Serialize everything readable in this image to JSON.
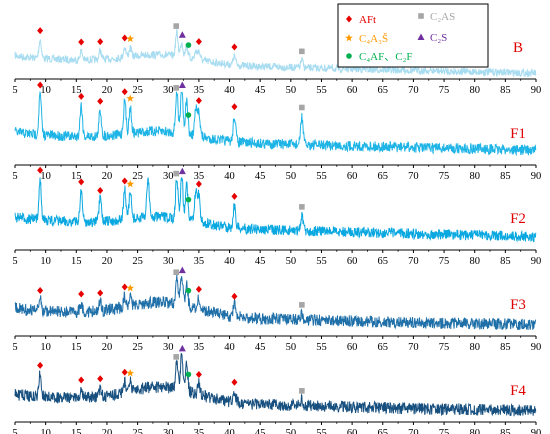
{
  "chart_data": {
    "type": "line",
    "xlim": [
      5,
      90
    ],
    "x_ticks": [
      5,
      10,
      15,
      20,
      25,
      30,
      35,
      40,
      45,
      50,
      55,
      60,
      65,
      70,
      75,
      80,
      85,
      90
    ],
    "grid": false,
    "legend_position": "top-right",
    "legend": [
      {
        "name": "AFt",
        "marker": "diamond",
        "color": "#e60000"
      },
      {
        "name": "C₂AS",
        "marker": "square",
        "color": "#a6a6a6"
      },
      {
        "name": "C₄A₃Š",
        "marker": "star",
        "color": "#ff9900"
      },
      {
        "name": "C₂S",
        "marker": "triangle",
        "color": "#7030a0"
      },
      {
        "name": "C₄AF、C₂F",
        "marker": "circle",
        "color": "#00b050"
      }
    ],
    "marker_colors": {
      "AFt": "#e60000",
      "C2AS": "#a6a6a6",
      "C4A3S": "#ff9900",
      "C2S": "#7030a0",
      "C4AF": "#00b050"
    },
    "series": [
      {
        "name": "B",
        "color": "#a8dcf0",
        "baseline_left": 0.68,
        "baseline_right": 0.92,
        "hump_height": 0.12,
        "noise": 0.05,
        "peaks": [
          [
            9.1,
            0.25
          ],
          [
            15.8,
            0.12
          ],
          [
            18.9,
            0.12
          ],
          [
            22.9,
            0.14
          ],
          [
            23.8,
            0.12
          ],
          [
            31.4,
            0.32
          ],
          [
            32.2,
            0.2
          ],
          [
            33.0,
            0.16
          ],
          [
            34.5,
            0.1
          ],
          [
            35.0,
            0.12
          ],
          [
            40.8,
            0.12
          ],
          [
            51.8,
            0.1
          ]
        ],
        "markers": [
          {
            "phase": "AFt",
            "x": 9.1
          },
          {
            "phase": "AFt",
            "x": 15.8
          },
          {
            "phase": "AFt",
            "x": 18.9
          },
          {
            "phase": "AFt",
            "x": 22.9
          },
          {
            "phase": "C4A3S",
            "x": 23.8
          },
          {
            "phase": "C2AS",
            "x": 31.3
          },
          {
            "phase": "C2S",
            "x": 32.3
          },
          {
            "phase": "C4AF",
            "x": 33.3
          },
          {
            "phase": "AFt",
            "x": 35.0
          },
          {
            "phase": "AFt",
            "x": 40.8
          },
          {
            "phase": "C2AS",
            "x": 51.8
          }
        ]
      },
      {
        "name": "F1",
        "color": "#1eb4e6",
        "baseline_left": 0.55,
        "baseline_right": 0.8,
        "hump_height": 0.12,
        "noise": 0.07,
        "peaks": [
          [
            9.1,
            0.55
          ],
          [
            15.8,
            0.42
          ],
          [
            18.9,
            0.35
          ],
          [
            22.9,
            0.45
          ],
          [
            23.8,
            0.35
          ],
          [
            31.4,
            0.55
          ],
          [
            32.2,
            0.65
          ],
          [
            33.0,
            0.45
          ],
          [
            34.5,
            0.35
          ],
          [
            35.0,
            0.35
          ],
          [
            40.8,
            0.35
          ],
          [
            51.8,
            0.38
          ]
        ],
        "markers": [
          {
            "phase": "AFt",
            "x": 9.1
          },
          {
            "phase": "AFt",
            "x": 15.8
          },
          {
            "phase": "AFt",
            "x": 18.9
          },
          {
            "phase": "AFt",
            "x": 22.9
          },
          {
            "phase": "C4A3S",
            "x": 23.8
          },
          {
            "phase": "C2AS",
            "x": 31.3
          },
          {
            "phase": "C2S",
            "x": 32.3
          },
          {
            "phase": "C4AF",
            "x": 33.3
          },
          {
            "phase": "AFt",
            "x": 35.0
          },
          {
            "phase": "AFt",
            "x": 40.8
          },
          {
            "phase": "C2AS",
            "x": 51.8
          }
        ]
      },
      {
        "name": "F2",
        "color": "#0aa8e0",
        "baseline_left": 0.55,
        "baseline_right": 0.82,
        "hump_height": 0.12,
        "noise": 0.07,
        "peaks": [
          [
            9.1,
            0.55
          ],
          [
            15.8,
            0.42
          ],
          [
            18.9,
            0.3
          ],
          [
            22.9,
            0.4
          ],
          [
            23.8,
            0.35
          ],
          [
            26.7,
            0.55
          ],
          [
            31.4,
            0.55
          ],
          [
            32.2,
            0.6
          ],
          [
            33.0,
            0.5
          ],
          [
            34.5,
            0.4
          ],
          [
            35.0,
            0.38
          ],
          [
            40.8,
            0.3
          ],
          [
            51.8,
            0.2
          ]
        ],
        "markers": [
          {
            "phase": "AFt",
            "x": 9.1
          },
          {
            "phase": "AFt",
            "x": 15.8
          },
          {
            "phase": "AFt",
            "x": 18.9
          },
          {
            "phase": "AFt",
            "x": 22.9
          },
          {
            "phase": "C4A3S",
            "x": 23.8
          },
          {
            "phase": "C2AS",
            "x": 31.3
          },
          {
            "phase": "C2S",
            "x": 32.3
          },
          {
            "phase": "C4AF",
            "x": 33.3
          },
          {
            "phase": "AFt",
            "x": 35.0
          },
          {
            "phase": "AFt",
            "x": 40.8
          },
          {
            "phase": "C2AS",
            "x": 51.8
          }
        ]
      },
      {
        "name": "F3",
        "color": "#1f6fa8",
        "baseline_left": 0.62,
        "baseline_right": 0.85,
        "hump_height": 0.18,
        "noise": 0.08,
        "peaks": [
          [
            9.1,
            0.15
          ],
          [
            15.8,
            0.12
          ],
          [
            18.9,
            0.12
          ],
          [
            22.9,
            0.15
          ],
          [
            23.8,
            0.12
          ],
          [
            31.4,
            0.35
          ],
          [
            32.2,
            0.4
          ],
          [
            33.0,
            0.3
          ],
          [
            35.0,
            0.15
          ],
          [
            40.8,
            0.15
          ],
          [
            51.8,
            0.08
          ]
        ],
        "markers": [
          {
            "phase": "AFt",
            "x": 9.1
          },
          {
            "phase": "AFt",
            "x": 15.8
          },
          {
            "phase": "AFt",
            "x": 18.9
          },
          {
            "phase": "AFt",
            "x": 22.9
          },
          {
            "phase": "C4A3S",
            "x": 23.8
          },
          {
            "phase": "C2AS",
            "x": 31.3
          },
          {
            "phase": "C2S",
            "x": 32.3
          },
          {
            "phase": "C4AF",
            "x": 33.3
          },
          {
            "phase": "AFt",
            "x": 35.0
          },
          {
            "phase": "AFt",
            "x": 40.8
          },
          {
            "phase": "C2AS",
            "x": 51.8
          }
        ]
      },
      {
        "name": "F4",
        "color": "#17507f",
        "baseline_left": 0.62,
        "baseline_right": 0.85,
        "hump_height": 0.2,
        "noise": 0.08,
        "peaks": [
          [
            9.1,
            0.3
          ],
          [
            15.8,
            0.12
          ],
          [
            18.9,
            0.12
          ],
          [
            22.9,
            0.15
          ],
          [
            23.8,
            0.12
          ],
          [
            31.4,
            0.35
          ],
          [
            32.2,
            0.5
          ],
          [
            33.0,
            0.35
          ],
          [
            35.0,
            0.15
          ],
          [
            40.8,
            0.15
          ],
          [
            51.8,
            0.08
          ]
        ],
        "markers": [
          {
            "phase": "AFt",
            "x": 9.1
          },
          {
            "phase": "AFt",
            "x": 15.8
          },
          {
            "phase": "AFt",
            "x": 18.9
          },
          {
            "phase": "AFt",
            "x": 22.9
          },
          {
            "phase": "C4A3S",
            "x": 23.8
          },
          {
            "phase": "C2AS",
            "x": 31.3
          },
          {
            "phase": "C2S",
            "x": 32.3
          },
          {
            "phase": "C4AF",
            "x": 33.3
          },
          {
            "phase": "AFt",
            "x": 35.0
          },
          {
            "phase": "AFt",
            "x": 40.8
          },
          {
            "phase": "C2AS",
            "x": 51.8
          }
        ]
      }
    ]
  }
}
